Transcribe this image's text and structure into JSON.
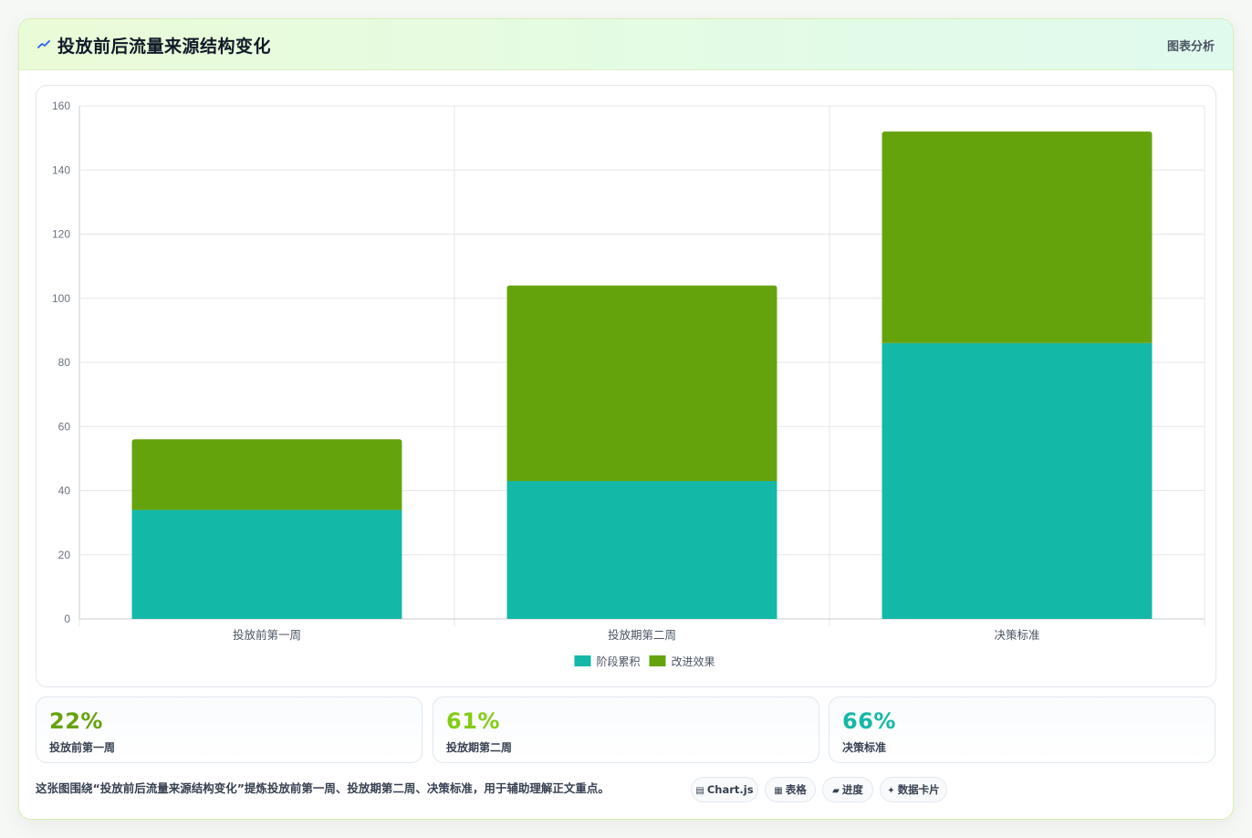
{
  "header": {
    "title": "投放前后流量来源结构变化",
    "link_label": "图表分析",
    "icon": "sparkline-icon"
  },
  "chart_data": {
    "type": "bar",
    "stacked": true,
    "categories": [
      "投放前第一周",
      "投放期第二周",
      "决策标准"
    ],
    "series": [
      {
        "name": "阶段累积",
        "values": [
          34,
          43,
          86
        ],
        "color": "#14b8a6"
      },
      {
        "name": "改进效果",
        "values": [
          22,
          61,
          66
        ],
        "color": "#65a30d"
      }
    ],
    "ylim": [
      0,
      160
    ],
    "yticks": [
      0,
      20,
      40,
      60,
      80,
      100,
      120,
      140,
      160
    ],
    "grid": true,
    "legend_position": "bottom-center"
  },
  "stats": [
    {
      "value": "22%",
      "label": "投放前第一周",
      "color": "#65a30d"
    },
    {
      "value": "61%",
      "label": "投放期第二周",
      "color": "#84cc16"
    },
    {
      "value": "66%",
      "label": "决策标准",
      "color": "#14b8a6"
    }
  ],
  "footer": {
    "text": "这张图围绕“投放前后流量来源结构变化”提炼投放前第一周、投放期第二周、决策标准，用于辅助理解正文重点。",
    "chips": [
      {
        "icon": "▤",
        "label": "Chart.js"
      },
      {
        "icon": "▦",
        "label": "表格"
      },
      {
        "icon": "▰",
        "label": "进度"
      },
      {
        "icon": "✦",
        "label": "数据卡片"
      }
    ]
  }
}
